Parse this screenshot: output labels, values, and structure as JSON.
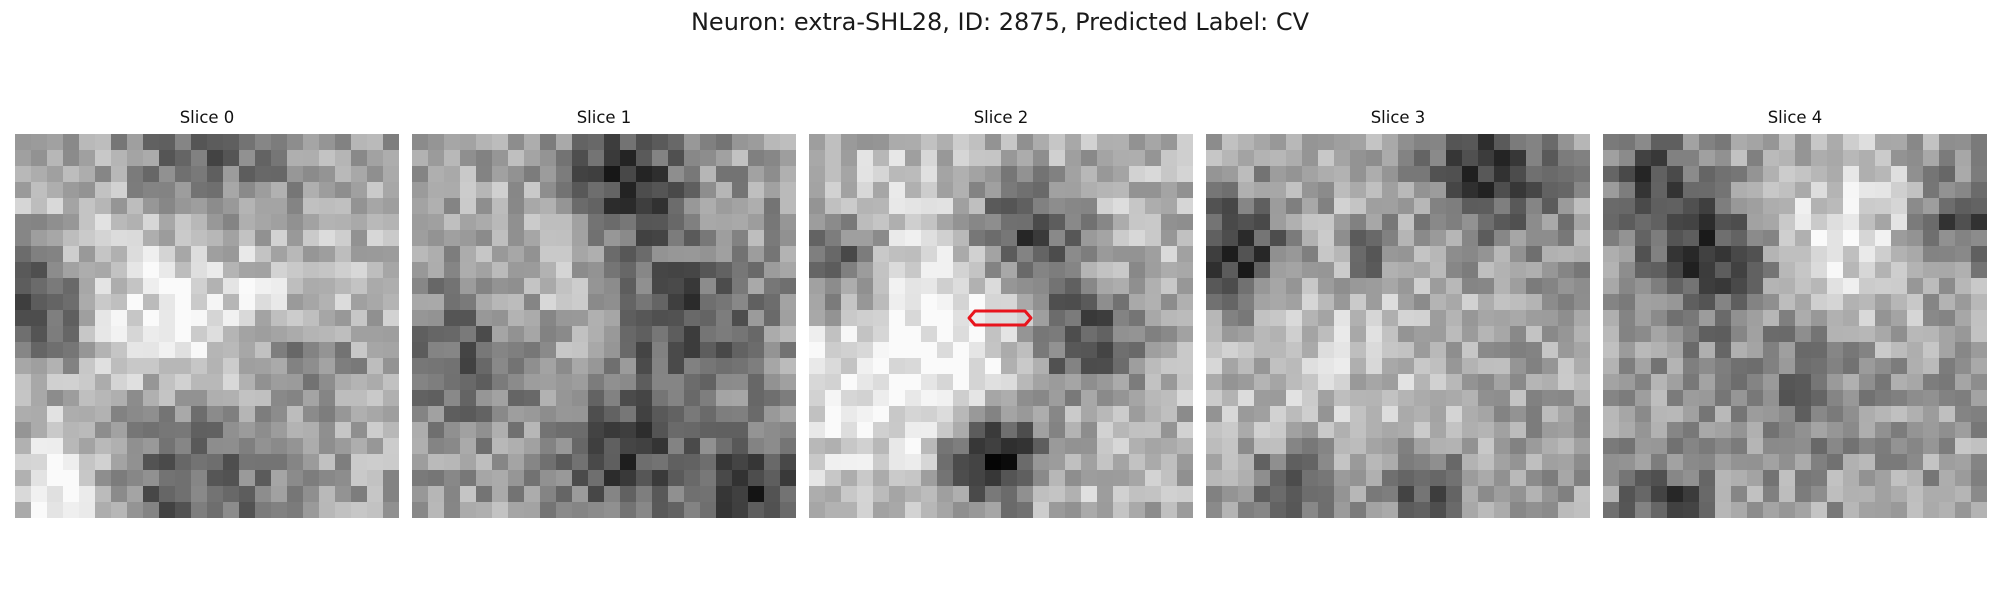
{
  "figure": {
    "title": "Neuron: extra-SHL28, ID: 2875, Predicted Label: CV"
  },
  "panels": [
    {
      "title": "Slice 0",
      "seed": 11,
      "has_roi": false
    },
    {
      "title": "Slice 1",
      "seed": 23,
      "has_roi": false
    },
    {
      "title": "Slice 2",
      "seed": 37,
      "has_roi": true
    },
    {
      "title": "Slice 3",
      "seed": 51,
      "has_roi": false
    },
    {
      "title": "Slice 4",
      "seed": 67,
      "has_roi": false
    }
  ],
  "image": {
    "grid_size": 24,
    "colormap": "gray"
  },
  "roi": {
    "color": "#e8141c",
    "shape": "hexagon-outline"
  }
}
